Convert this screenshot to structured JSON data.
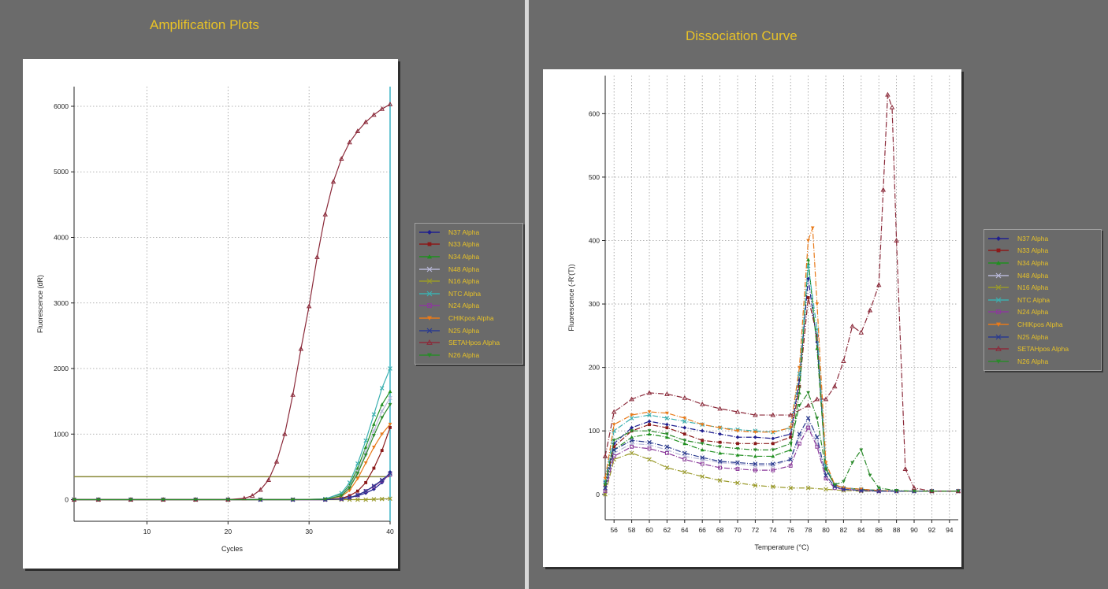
{
  "chart_data": [
    {
      "type": "line",
      "title": "Amplification Plots",
      "xlabel": "Cycles",
      "ylabel": "Fluorescence (dR)",
      "xlim": [
        1,
        40
      ],
      "ylim": [
        -330,
        6300
      ],
      "xticks": [
        10,
        20,
        30,
        40
      ],
      "yticks": [
        0,
        1000,
        2000,
        3000,
        4000,
        5000,
        6000
      ],
      "yticklabels": [
        "0",
        "1000",
        "2000",
        "3000",
        "4000",
        "5000",
        "6000"
      ],
      "grid": true,
      "legend_position": "right",
      "threshold": 350,
      "series": [
        {
          "name": "N37 Alpha",
          "color": "#1f1f8f",
          "marker": "diamond",
          "x": [
            1,
            4,
            8,
            12,
            16,
            20,
            24,
            28,
            32,
            34,
            35,
            36,
            37,
            38,
            39,
            40
          ],
          "values": [
            0,
            0,
            0,
            0,
            0,
            0,
            0,
            0,
            0,
            15,
            30,
            60,
            100,
            160,
            260,
            420
          ]
        },
        {
          "name": "N33 Alpha",
          "color": "#8b1a1a",
          "marker": "square",
          "x": [
            1,
            4,
            8,
            12,
            16,
            20,
            24,
            28,
            32,
            34,
            35,
            36,
            37,
            38,
            39,
            40
          ],
          "values": [
            0,
            0,
            0,
            0,
            0,
            0,
            0,
            0,
            0,
            20,
            60,
            130,
            260,
            480,
            750,
            1100
          ]
        },
        {
          "name": "N34 Alpha",
          "color": "#1f8f1f",
          "marker": "triangle",
          "x": [
            1,
            4,
            8,
            12,
            16,
            20,
            24,
            28,
            32,
            34,
            35,
            36,
            37,
            38,
            39,
            40
          ],
          "values": [
            0,
            0,
            0,
            0,
            0,
            0,
            0,
            0,
            10,
            80,
            220,
            480,
            800,
            1150,
            1450,
            1650
          ]
        },
        {
          "name": "N48 Alpha",
          "color": "#b8b8d8",
          "marker": "x",
          "x": [
            1,
            4,
            8,
            12,
            16,
            20,
            24,
            28,
            32,
            34,
            35,
            36,
            37,
            38,
            39,
            40
          ],
          "values": [
            0,
            0,
            0,
            0,
            0,
            0,
            0,
            0,
            10,
            70,
            200,
            430,
            720,
            1050,
            1350,
            1550
          ]
        },
        {
          "name": "N16 Alpha",
          "color": "#9a9a2a",
          "marker": "x",
          "x": [
            1,
            4,
            8,
            12,
            16,
            20,
            24,
            28,
            32,
            34,
            35,
            36,
            37,
            38,
            39,
            40
          ],
          "values": [
            0,
            0,
            0,
            0,
            0,
            0,
            0,
            0,
            0,
            0,
            0,
            0,
            0,
            5,
            10,
            15
          ]
        },
        {
          "name": "NTC Alpha",
          "color": "#3cb0b0",
          "marker": "x",
          "x": [
            1,
            4,
            8,
            12,
            16,
            20,
            24,
            28,
            32,
            34,
            35,
            36,
            37,
            38,
            39,
            40
          ],
          "values": [
            0,
            0,
            0,
            0,
            0,
            0,
            0,
            0,
            10,
            100,
            260,
            550,
            900,
            1300,
            1700,
            2000
          ]
        },
        {
          "name": "N24 Alpha",
          "color": "#8b3a9b",
          "marker": "square-open",
          "x": [
            1,
            4,
            8,
            12,
            16,
            20,
            24,
            28,
            32,
            34,
            35,
            36,
            37,
            38,
            39,
            40
          ],
          "values": [
            0,
            0,
            0,
            0,
            0,
            0,
            0,
            0,
            0,
            10,
            30,
            70,
            130,
            200,
            290,
            380
          ]
        },
        {
          "name": "CHIKpos Alpha",
          "color": "#e87a1a",
          "marker": "triangle-down",
          "x": [
            1,
            4,
            8,
            12,
            16,
            20,
            24,
            28,
            32,
            34,
            35,
            36,
            37,
            38,
            39,
            40
          ],
          "values": [
            0,
            0,
            0,
            0,
            0,
            0,
            0,
            0,
            5,
            50,
            140,
            320,
            560,
            800,
            1000,
            1150
          ]
        },
        {
          "name": "N25 Alpha",
          "color": "#2a3a8f",
          "marker": "x",
          "x": [
            1,
            4,
            8,
            12,
            16,
            20,
            24,
            28,
            32,
            34,
            35,
            36,
            37,
            38,
            39,
            40
          ],
          "values": [
            0,
            0,
            0,
            0,
            0,
            0,
            0,
            0,
            0,
            10,
            30,
            70,
            130,
            210,
            300,
            400
          ]
        },
        {
          "name": "SETAHpos Alpha",
          "color": "#8b2a3a",
          "marker": "triangle-open",
          "x": [
            1,
            4,
            8,
            12,
            16,
            20,
            22,
            23,
            24,
            25,
            26,
            27,
            28,
            29,
            30,
            31,
            32,
            33,
            34,
            35,
            36,
            37,
            38,
            39,
            40
          ],
          "values": [
            0,
            0,
            0,
            0,
            0,
            0,
            20,
            60,
            150,
            300,
            580,
            1000,
            1600,
            2300,
            2950,
            3700,
            4350,
            4850,
            5200,
            5450,
            5620,
            5760,
            5870,
            5960,
            6030
          ]
        },
        {
          "name": "N26 Alpha",
          "color": "#2a8a2a",
          "marker": "triangle-down",
          "x": [
            1,
            4,
            8,
            12,
            16,
            20,
            24,
            28,
            32,
            34,
            35,
            36,
            37,
            38,
            39,
            40
          ],
          "values": [
            0,
            0,
            0,
            0,
            0,
            0,
            0,
            0,
            5,
            60,
            180,
            400,
            680,
            980,
            1250,
            1450
          ]
        }
      ]
    },
    {
      "type": "line",
      "title": "Dissociation Curve",
      "xlabel": "Temperature (°C)",
      "ylabel": "Fluorescence (-R'(T))",
      "xlim": [
        55,
        95
      ],
      "ylim": [
        -40,
        660
      ],
      "xticks": [
        56,
        58,
        60,
        62,
        64,
        66,
        68,
        70,
        72,
        74,
        76,
        78,
        80,
        82,
        84,
        86,
        88,
        90,
        92,
        94
      ],
      "yticks": [
        0,
        100,
        200,
        300,
        400,
        500,
        600
      ],
      "yticklabels": [
        "0",
        "100",
        "200",
        "300",
        "400",
        "500",
        "600"
      ],
      "grid": true,
      "legend_position": "right",
      "series": [
        {
          "name": "N37 Alpha",
          "color": "#1f1f8f",
          "marker": "diamond",
          "x": [
            55,
            56,
            58,
            60,
            62,
            64,
            66,
            68,
            70,
            72,
            74,
            76,
            77,
            78,
            79,
            80,
            81,
            82,
            84,
            86,
            88,
            90,
            92,
            95
          ],
          "values": [
            20,
            80,
            105,
            115,
            110,
            105,
            100,
            95,
            90,
            90,
            88,
            95,
            180,
            340,
            240,
            40,
            15,
            10,
            8,
            6,
            5,
            5,
            5,
            5
          ]
        },
        {
          "name": "N33 Alpha",
          "color": "#8b1a1a",
          "marker": "square",
          "x": [
            55,
            56,
            58,
            60,
            62,
            64,
            66,
            68,
            70,
            72,
            74,
            76,
            77,
            78,
            79,
            80,
            81,
            82,
            84,
            86,
            88,
            90,
            92,
            95
          ],
          "values": [
            15,
            75,
            100,
            110,
            105,
            95,
            85,
            82,
            80,
            80,
            80,
            90,
            170,
            310,
            250,
            40,
            15,
            10,
            8,
            6,
            5,
            5,
            5,
            5
          ]
        },
        {
          "name": "N34 Alpha",
          "color": "#1f8f1f",
          "marker": "triangle",
          "x": [
            55,
            56,
            58,
            60,
            62,
            64,
            66,
            68,
            70,
            72,
            74,
            76,
            77,
            78,
            79,
            80,
            81,
            82,
            84,
            86,
            88,
            90,
            92,
            95
          ],
          "values": [
            10,
            70,
            90,
            95,
            90,
            80,
            70,
            65,
            62,
            60,
            60,
            70,
            160,
            370,
            230,
            40,
            15,
            10,
            8,
            6,
            5,
            5,
            5,
            5
          ]
        },
        {
          "name": "N48 Alpha",
          "color": "#b8b8d8",
          "marker": "x",
          "x": [
            55,
            56,
            58,
            60,
            62,
            64,
            66,
            68,
            70,
            72,
            74,
            76,
            77,
            78,
            79,
            80,
            81,
            82,
            84,
            86,
            88,
            90,
            92,
            95
          ],
          "values": [
            5,
            65,
            80,
            78,
            70,
            60,
            55,
            50,
            48,
            45,
            45,
            55,
            90,
            110,
            80,
            30,
            12,
            8,
            6,
            5,
            5,
            5,
            5,
            5
          ]
        },
        {
          "name": "N16 Alpha",
          "color": "#9a9a2a",
          "marker": "x",
          "x": [
            55,
            56,
            58,
            60,
            62,
            64,
            66,
            68,
            70,
            72,
            74,
            76,
            78,
            80,
            82,
            84,
            86,
            88,
            90,
            92,
            95
          ],
          "values": [
            0,
            55,
            65,
            55,
            42,
            35,
            28,
            22,
            18,
            14,
            12,
            10,
            10,
            8,
            6,
            5,
            5,
            5,
            5,
            5,
            5
          ]
        },
        {
          "name": "NTC Alpha",
          "color": "#3cb0b0",
          "marker": "x",
          "x": [
            55,
            56,
            58,
            60,
            62,
            64,
            66,
            68,
            70,
            72,
            74,
            76,
            77,
            78,
            79,
            80,
            81,
            82,
            84,
            86,
            88,
            90,
            92,
            95
          ],
          "values": [
            20,
            100,
            120,
            125,
            120,
            115,
            110,
            105,
            102,
            100,
            98,
            105,
            190,
            360,
            260,
            45,
            15,
            10,
            8,
            6,
            5,
            5,
            5,
            5
          ]
        },
        {
          "name": "N24 Alpha",
          "color": "#8b3a9b",
          "marker": "square-open",
          "x": [
            55,
            56,
            58,
            60,
            62,
            64,
            66,
            68,
            70,
            72,
            74,
            76,
            77,
            78,
            79,
            80,
            81,
            82,
            84,
            86,
            88,
            90,
            92,
            95
          ],
          "values": [
            5,
            60,
            75,
            72,
            65,
            55,
            48,
            42,
            40,
            38,
            38,
            45,
            80,
            105,
            75,
            25,
            10,
            8,
            6,
            5,
            5,
            5,
            5,
            5
          ]
        },
        {
          "name": "CHIKpos Alpha",
          "color": "#e87a1a",
          "marker": "triangle-down",
          "x": [
            55,
            56,
            58,
            60,
            62,
            64,
            66,
            68,
            70,
            72,
            74,
            76,
            77,
            78,
            78.5,
            79,
            80,
            81,
            82,
            84,
            86,
            88,
            90,
            92,
            95
          ],
          "values": [
            25,
            110,
            125,
            130,
            128,
            120,
            110,
            105,
            100,
            98,
            98,
            105,
            200,
            400,
            420,
            300,
            50,
            15,
            10,
            8,
            6,
            5,
            5,
            5,
            5
          ]
        },
        {
          "name": "N25 Alpha",
          "color": "#2a3a8f",
          "marker": "x",
          "x": [
            55,
            56,
            58,
            60,
            62,
            64,
            66,
            68,
            70,
            72,
            74,
            76,
            77,
            78,
            79,
            80,
            81,
            82,
            84,
            86,
            88,
            90,
            92,
            95
          ],
          "values": [
            10,
            70,
            85,
            82,
            75,
            65,
            58,
            52,
            50,
            48,
            48,
            55,
            95,
            120,
            90,
            30,
            12,
            8,
            6,
            5,
            5,
            5,
            5,
            5
          ]
        },
        {
          "name": "SETAHpos Alpha",
          "color": "#8b2a3a",
          "marker": "triangle-open",
          "x": [
            55,
            56,
            58,
            60,
            62,
            64,
            66,
            68,
            70,
            72,
            74,
            76,
            78,
            79,
            80,
            81,
            82,
            83,
            84,
            85,
            86,
            86.5,
            87,
            87.5,
            88,
            89,
            90,
            92,
            95
          ],
          "values": [
            60,
            130,
            150,
            160,
            158,
            152,
            142,
            135,
            130,
            125,
            125,
            125,
            140,
            150,
            150,
            170,
            210,
            265,
            255,
            290,
            330,
            480,
            630,
            610,
            400,
            40,
            10,
            5,
            5
          ]
        },
        {
          "name": "N26 Alpha",
          "color": "#2a8a2a",
          "marker": "triangle-down",
          "x": [
            55,
            56,
            58,
            60,
            62,
            64,
            66,
            68,
            70,
            72,
            74,
            76,
            77,
            78,
            79,
            80,
            81,
            82,
            83,
            84,
            85,
            86,
            88,
            90,
            92,
            95
          ],
          "values": [
            15,
            85,
            100,
            100,
            95,
            85,
            80,
            75,
            72,
            70,
            70,
            80,
            140,
            160,
            120,
            40,
            15,
            20,
            50,
            70,
            30,
            10,
            6,
            5,
            5,
            5
          ]
        }
      ]
    }
  ]
}
